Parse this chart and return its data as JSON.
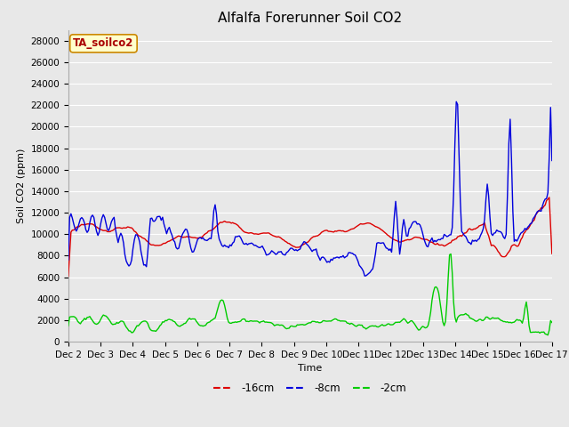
{
  "title": "Alfalfa Forerunner Soil CO2",
  "ylabel": "Soil CO2 (ppm)",
  "xlabel": "Time",
  "legend_label": "TA_soilco2",
  "series_labels": [
    "-16cm",
    "-8cm",
    "-2cm"
  ],
  "series_colors": [
    "#dd0000",
    "#0000dd",
    "#00cc00"
  ],
  "ylim": [
    0,
    29000
  ],
  "yticks": [
    0,
    2000,
    4000,
    6000,
    8000,
    10000,
    12000,
    14000,
    16000,
    18000,
    20000,
    22000,
    24000,
    26000,
    28000
  ],
  "bg_color": "#e8e8e8",
  "fig_color": "#e8e8e8",
  "grid_color": "#ffffff",
  "title_fontsize": 11,
  "axis_fontsize": 8,
  "tick_fontsize": 7.5,
  "figsize": [
    6.4,
    4.8
  ],
  "dpi": 100
}
